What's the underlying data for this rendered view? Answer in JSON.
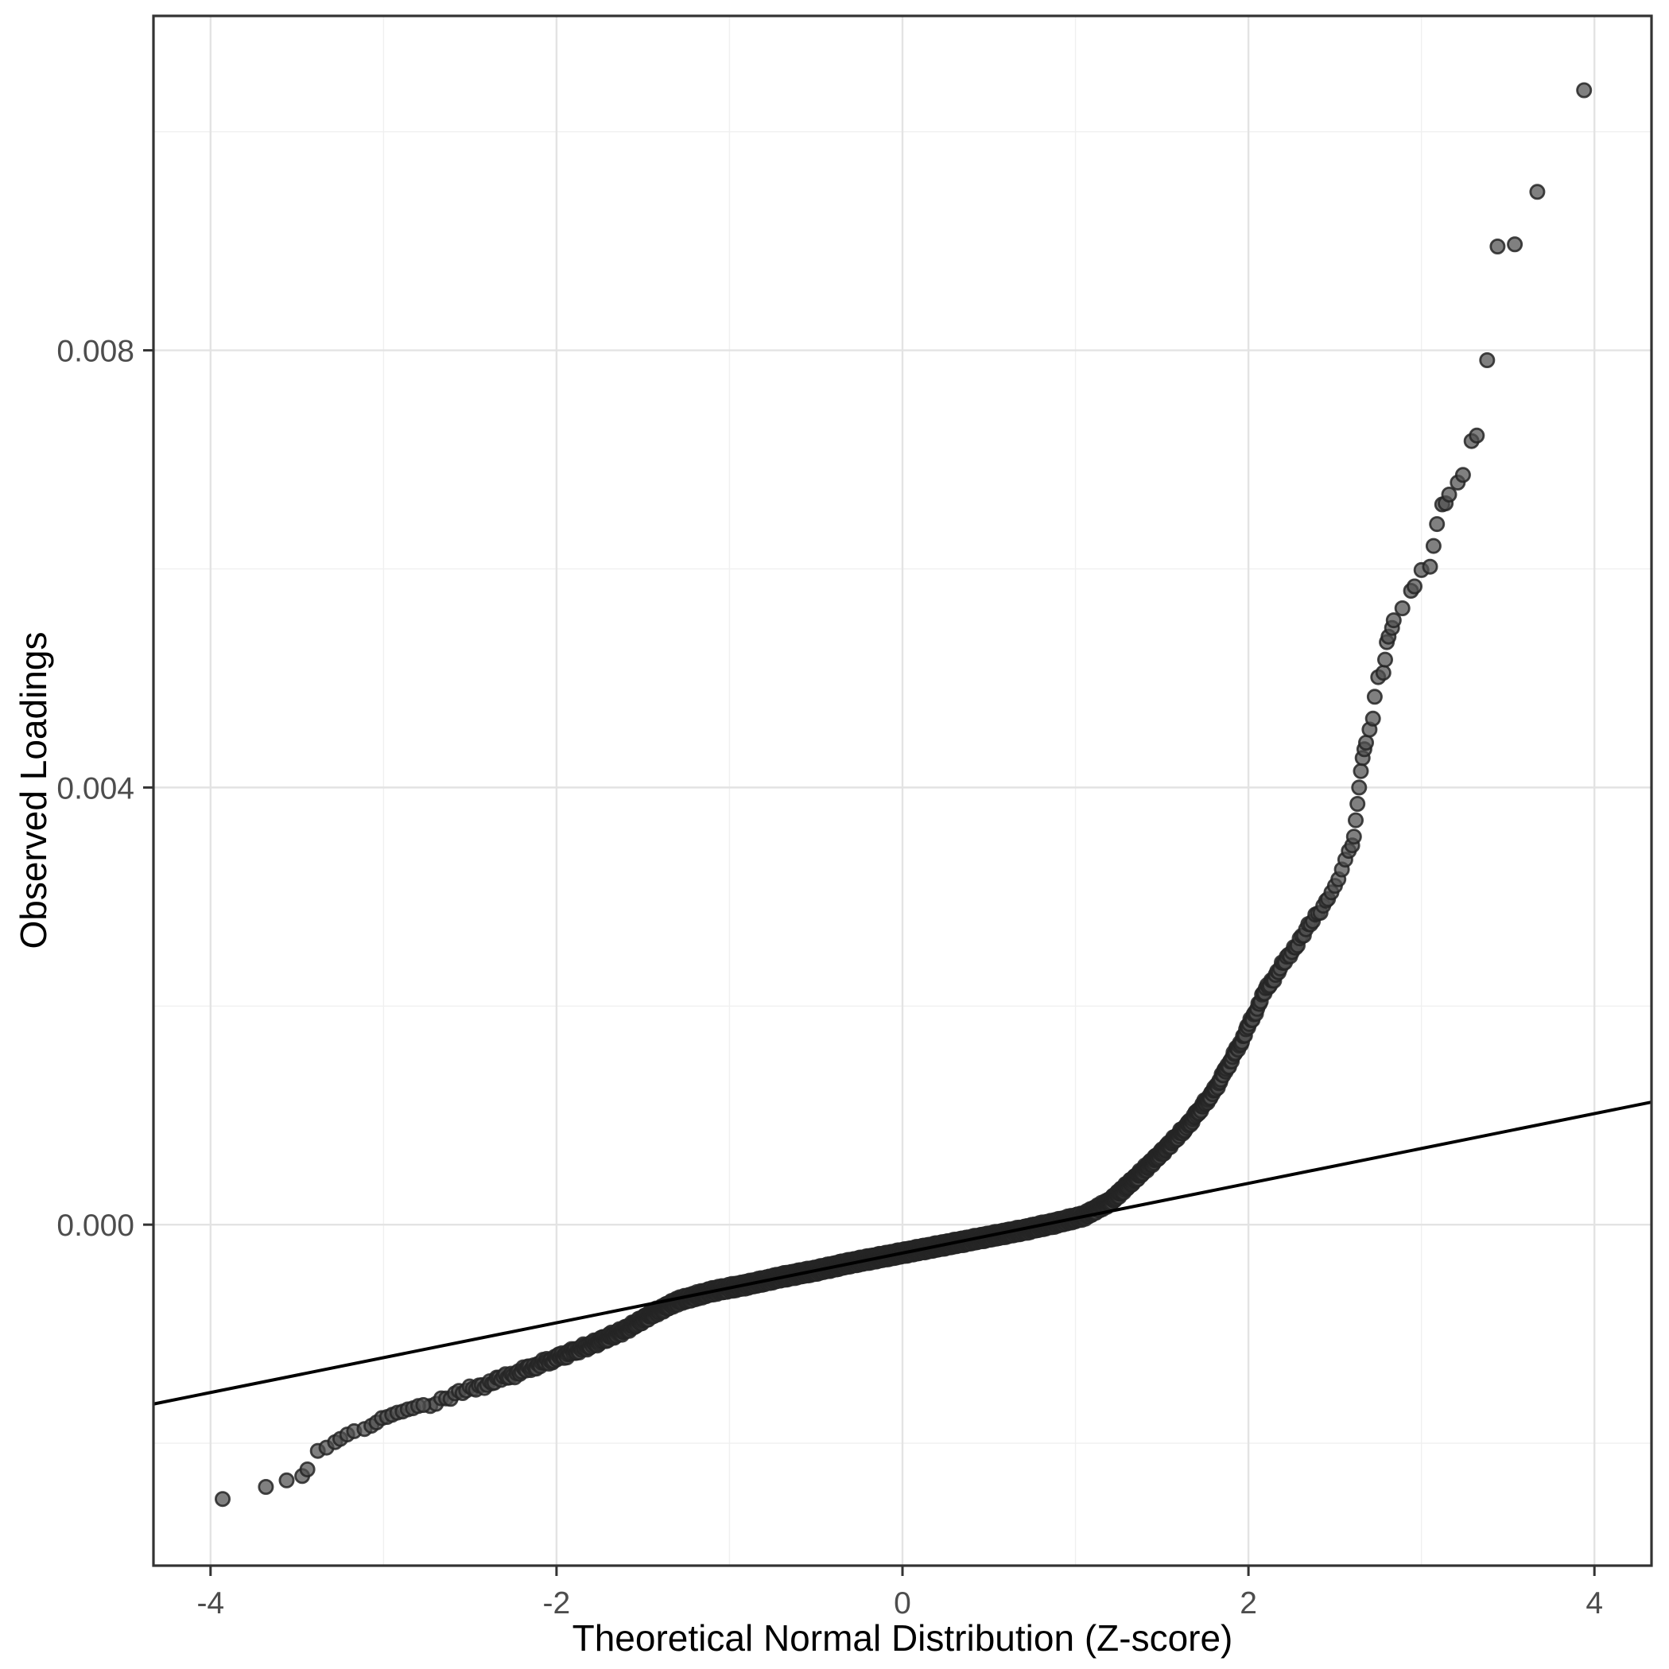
{
  "chart_data": {
    "type": "scatter",
    "subtype": "qq-plot",
    "title": "",
    "xlabel": "Theoretical Normal Distribution (Z-score)",
    "ylabel": "Observed Loadings",
    "xlim": [
      -4.33,
      4.33
    ],
    "ylim": [
      -0.00312,
      0.01106
    ],
    "grid": "on",
    "legend": "none",
    "x_major_ticks": [
      {
        "value": -4,
        "label": "-4"
      },
      {
        "value": -2,
        "label": "-2"
      },
      {
        "value": 0,
        "label": "0"
      },
      {
        "value": 2,
        "label": "2"
      },
      {
        "value": 4,
        "label": "4"
      }
    ],
    "x_minor_gridlines": [
      -3,
      -1,
      1,
      3
    ],
    "y_major_ticks": [
      {
        "value": 0.0,
        "label": "0.000"
      },
      {
        "value": 0.004,
        "label": "0.004"
      },
      {
        "value": 0.008,
        "label": "0.008"
      }
    ],
    "y_minor_gridlines": [
      -0.002,
      0.002,
      0.006,
      0.01
    ],
    "reference_line": {
      "slope": 0.000319,
      "intercept": -0.00026
    },
    "qq_band": {
      "description": "dense band of overlapping sample quantile points (z from standard normal quantiles, v = observed loading quantile curve)",
      "z_range": [
        -2.74,
        2.45
      ],
      "n_points_rendered": 3000,
      "anchors": [
        [
          -2.74,
          -0.00164
        ],
        [
          -2.5,
          -0.00151
        ],
        [
          -2.25,
          -0.00137
        ],
        [
          -2.0,
          -0.00122
        ],
        [
          -1.8,
          -0.0011
        ],
        [
          -1.6,
          -0.00096
        ],
        [
          -1.45,
          -0.00082
        ],
        [
          -1.3,
          -0.0007
        ],
        [
          -1.1,
          -0.00061
        ],
        [
          -0.9,
          -0.00055
        ],
        [
          -0.7,
          -0.00048
        ],
        [
          -0.5,
          -0.00042
        ],
        [
          -0.3,
          -0.00035
        ],
        [
          -0.1,
          -0.00029
        ],
        [
          0.1,
          -0.00023
        ],
        [
          0.3,
          -0.00017
        ],
        [
          0.5,
          -0.00011
        ],
        [
          0.7,
          -5e-05
        ],
        [
          0.9,
          2e-05
        ],
        [
          1.05,
          8e-05
        ],
        [
          1.2,
          0.00021
        ],
        [
          1.35,
          0.00043
        ],
        [
          1.5,
          0.00066
        ],
        [
          1.65,
          0.00091
        ],
        [
          1.8,
          0.00122
        ],
        [
          1.95,
          0.00165
        ],
        [
          2.1,
          0.00215
        ],
        [
          2.25,
          0.0025
        ],
        [
          2.45,
          0.00296
        ]
      ]
    },
    "lower_tail_points": [
      [
        -3.93,
        -0.00251
      ],
      [
        -3.68,
        -0.0024
      ],
      [
        -3.56,
        -0.00234
      ],
      [
        -3.47,
        -0.0023
      ],
      [
        -3.44,
        -0.00224
      ],
      [
        -3.38,
        -0.00207
      ],
      [
        -3.33,
        -0.00204
      ],
      [
        -3.28,
        -0.00199
      ],
      [
        -3.25,
        -0.00196
      ],
      [
        -3.21,
        -0.00192
      ],
      [
        -3.17,
        -0.00189
      ],
      [
        -3.11,
        -0.00187
      ],
      [
        -3.07,
        -0.00184
      ],
      [
        -3.04,
        -0.00181
      ],
      [
        -3.01,
        -0.00177
      ],
      [
        -2.98,
        -0.00176
      ],
      [
        -2.95,
        -0.00174
      ],
      [
        -2.92,
        -0.00172
      ],
      [
        -2.89,
        -0.00171
      ],
      [
        -2.86,
        -0.00169
      ],
      [
        -2.83,
        -0.00168
      ],
      [
        -2.8,
        -0.00166
      ],
      [
        -2.77,
        -0.00165
      ]
    ],
    "upper_tail_points": [
      [
        2.46,
        0.00298
      ],
      [
        2.48,
        0.00304
      ],
      [
        2.5,
        0.0031
      ],
      [
        2.52,
        0.00316
      ],
      [
        2.54,
        0.00325
      ],
      [
        2.56,
        0.00334
      ],
      [
        2.58,
        0.00342
      ],
      [
        2.6,
        0.00347
      ],
      [
        2.61,
        0.00355
      ],
      [
        2.62,
        0.0037
      ],
      [
        2.63,
        0.00385
      ],
      [
        2.64,
        0.004
      ],
      [
        2.65,
        0.00415
      ],
      [
        2.66,
        0.00427
      ],
      [
        2.67,
        0.00435
      ],
      [
        2.68,
        0.00441
      ],
      [
        2.7,
        0.00453
      ],
      [
        2.72,
        0.00463
      ],
      [
        2.73,
        0.00483
      ],
      [
        2.75,
        0.00501
      ],
      [
        2.78,
        0.00505
      ],
      [
        2.79,
        0.00517
      ],
      [
        2.8,
        0.00533
      ],
      [
        2.81,
        0.00538
      ],
      [
        2.83,
        0.00546
      ],
      [
        2.84,
        0.00553
      ],
      [
        2.89,
        0.00564
      ],
      [
        2.94,
        0.0058
      ],
      [
        2.96,
        0.00584
      ],
      [
        3.0,
        0.00599
      ],
      [
        3.05,
        0.00602
      ],
      [
        3.07,
        0.00621
      ],
      [
        3.09,
        0.00641
      ],
      [
        3.12,
        0.00659
      ],
      [
        3.14,
        0.0066
      ],
      [
        3.16,
        0.00668
      ],
      [
        3.21,
        0.00679
      ],
      [
        3.24,
        0.00686
      ],
      [
        3.29,
        0.00717
      ],
      [
        3.32,
        0.00722
      ],
      [
        3.38,
        0.00791
      ],
      [
        3.44,
        0.00895
      ],
      [
        3.54,
        0.00897
      ],
      [
        3.67,
        0.00945
      ],
      [
        3.94,
        0.01038
      ]
    ],
    "style": {
      "background_color": "#FFFFFF",
      "panel_background": "#FFFFFF",
      "panel_border_color": "#333333",
      "grid_major_color": "#E3E3E3",
      "grid_minor_color": "#F0F0F0",
      "tick_mark_color": "#333333",
      "tick_label_color": "#4D4D4D",
      "axis_title_color": "#000000",
      "reference_line_color": "#000000",
      "point_fill": "#4F4F4F",
      "point_fill_opacity": 0.72,
      "point_stroke": "#242424",
      "point_stroke_opacity": 0.85,
      "point_radius": 8.6,
      "point_stroke_width": 2.8
    }
  }
}
